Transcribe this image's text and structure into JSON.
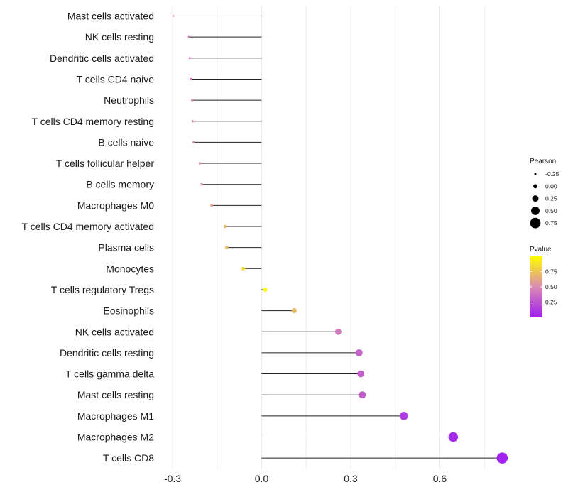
{
  "chart_data": {
    "type": "lollipop",
    "title": "",
    "xlabel": "",
    "ylabel": "",
    "xlim": [
      -0.33,
      0.83
    ],
    "x_ticks": [
      {
        "value": -0.3,
        "label": "-0.3"
      },
      {
        "value": 0.0,
        "label": "0.0"
      },
      {
        "value": 0.3,
        "label": "0.3"
      },
      {
        "value": 0.6,
        "label": "0.6"
      }
    ],
    "grid": true,
    "categories": [
      {
        "name": "Mast cells activated",
        "pearson": -0.297,
        "pvalue": 0.45
      },
      {
        "name": "NK cells resting",
        "pearson": -0.245,
        "pvalue": 0.42
      },
      {
        "name": "Dendritic cells activated",
        "pearson": -0.242,
        "pvalue": 0.41
      },
      {
        "name": "T cells CD4 naive",
        "pearson": -0.237,
        "pvalue": 0.44
      },
      {
        "name": "Neutrophils",
        "pearson": -0.234,
        "pvalue": 0.45
      },
      {
        "name": "T cells CD4 memory resting",
        "pearson": -0.232,
        "pvalue": 0.46
      },
      {
        "name": "B cells naive",
        "pearson": -0.229,
        "pvalue": 0.47
      },
      {
        "name": "T cells follicular helper",
        "pearson": -0.208,
        "pvalue": 0.52
      },
      {
        "name": "B cells memory",
        "pearson": -0.202,
        "pvalue": 0.54
      },
      {
        "name": "Macrophages M0",
        "pearson": -0.168,
        "pvalue": 0.6
      },
      {
        "name": "T cells CD4 memory activated",
        "pearson": -0.123,
        "pvalue": 0.7
      },
      {
        "name": "Plasma cells",
        "pearson": -0.118,
        "pvalue": 0.71
      },
      {
        "name": "Monocytes",
        "pearson": -0.062,
        "pvalue": 0.85
      },
      {
        "name": "T cells regulatory  Tregs ",
        "pearson": 0.012,
        "pvalue": 0.97
      },
      {
        "name": "Eosinophils",
        "pearson": 0.11,
        "pvalue": 0.72
      },
      {
        "name": "NK cells activated",
        "pearson": 0.258,
        "pvalue": 0.42
      },
      {
        "name": "Dendritic cells resting",
        "pearson": 0.328,
        "pvalue": 0.31
      },
      {
        "name": "T cells gamma delta",
        "pearson": 0.334,
        "pvalue": 0.3
      },
      {
        "name": "Mast cells resting",
        "pearson": 0.339,
        "pvalue": 0.29
      },
      {
        "name": "Macrophages M1",
        "pearson": 0.479,
        "pvalue": 0.13
      },
      {
        "name": "Macrophages M2",
        "pearson": 0.645,
        "pvalue": 0.04
      },
      {
        "name": "T cells CD8",
        "pearson": 0.81,
        "pvalue": 0.01
      }
    ],
    "size_legend": {
      "title": "Pearson",
      "entries": [
        {
          "value": -0.25,
          "label": "-0.25"
        },
        {
          "value": 0.0,
          "label": "0.00"
        },
        {
          "value": 0.25,
          "label": "0.25"
        },
        {
          "value": 0.5,
          "label": "0.50"
        },
        {
          "value": 0.75,
          "label": "0.75"
        }
      ]
    },
    "color_legend": {
      "title": "Pvalue",
      "range": [
        0.0,
        1.0
      ],
      "ticks": [
        {
          "value": 0.75,
          "label": "0.75"
        },
        {
          "value": 0.5,
          "label": "0.50"
        },
        {
          "value": 0.25,
          "label": "0.25"
        }
      ],
      "colors": {
        "low": "#a020f0",
        "mid": "#d98bb1",
        "high": "#ffff00"
      }
    }
  }
}
